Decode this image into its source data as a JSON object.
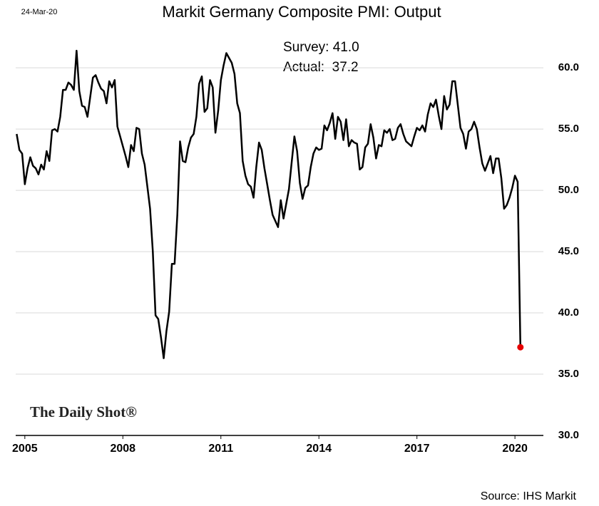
{
  "chart_data": {
    "type": "line",
    "title": "Markit Germany Composite PMI: Output",
    "date_label": "24-Mar-20",
    "annotations": [
      "Survey: 41.0",
      "Actual:  37.2"
    ],
    "logo": "The Daily Shot®",
    "source": "Source: IHS Markit",
    "x": [
      2004.75,
      2004.833,
      2004.917,
      2005,
      2005.083,
      2005.167,
      2005.25,
      2005.333,
      2005.417,
      2005.5,
      2005.583,
      2005.667,
      2005.75,
      2005.833,
      2005.917,
      2006,
      2006.083,
      2006.167,
      2006.25,
      2006.333,
      2006.417,
      2006.5,
      2006.583,
      2006.667,
      2006.75,
      2006.833,
      2006.917,
      2007,
      2007.083,
      2007.167,
      2007.25,
      2007.333,
      2007.417,
      2007.5,
      2007.583,
      2007.667,
      2007.75,
      2007.833,
      2007.917,
      2008,
      2008.083,
      2008.167,
      2008.25,
      2008.333,
      2008.417,
      2008.5,
      2008.583,
      2008.667,
      2008.75,
      2008.833,
      2008.917,
      2009,
      2009.083,
      2009.167,
      2009.25,
      2009.333,
      2009.417,
      2009.5,
      2009.583,
      2009.667,
      2009.75,
      2009.833,
      2009.917,
      2010,
      2010.083,
      2010.167,
      2010.25,
      2010.333,
      2010.417,
      2010.5,
      2010.583,
      2010.667,
      2010.75,
      2010.833,
      2010.917,
      2011,
      2011.083,
      2011.167,
      2011.25,
      2011.333,
      2011.417,
      2011.5,
      2011.583,
      2011.667,
      2011.75,
      2011.833,
      2011.917,
      2012,
      2012.083,
      2012.167,
      2012.25,
      2012.333,
      2012.417,
      2012.5,
      2012.583,
      2012.667,
      2012.75,
      2012.833,
      2012.917,
      2013,
      2013.083,
      2013.167,
      2013.25,
      2013.333,
      2013.417,
      2013.5,
      2013.583,
      2013.667,
      2013.75,
      2013.833,
      2013.917,
      2014,
      2014.083,
      2014.167,
      2014.25,
      2014.333,
      2014.417,
      2014.5,
      2014.583,
      2014.667,
      2014.75,
      2014.833,
      2014.917,
      2015,
      2015.083,
      2015.167,
      2015.25,
      2015.333,
      2015.417,
      2015.5,
      2015.583,
      2015.667,
      2015.75,
      2015.833,
      2015.917,
      2016,
      2016.083,
      2016.167,
      2016.25,
      2016.333,
      2016.417,
      2016.5,
      2016.583,
      2016.667,
      2016.75,
      2016.833,
      2016.917,
      2017,
      2017.083,
      2017.167,
      2017.25,
      2017.333,
      2017.417,
      2017.5,
      2017.583,
      2017.667,
      2017.75,
      2017.833,
      2017.917,
      2018,
      2018.083,
      2018.167,
      2018.25,
      2018.333,
      2018.417,
      2018.5,
      2018.583,
      2018.667,
      2018.75,
      2018.833,
      2018.917,
      2019,
      2019.083,
      2019.167,
      2019.25,
      2019.333,
      2019.417,
      2019.5,
      2019.583,
      2019.667,
      2019.75,
      2019.833,
      2019.917,
      2020,
      2020.083,
      2020.167
    ],
    "series": [
      {
        "color": "#000000",
        "highlight_color": "#e60000",
        "values": [
          54.6,
          53.3,
          53.0,
          50.5,
          51.8,
          52.7,
          52.0,
          51.8,
          51.3,
          52.1,
          51.7,
          53.2,
          52.4,
          54.9,
          55.0,
          54.8,
          56.0,
          58.2,
          58.2,
          58.8,
          58.6,
          58.2,
          61.4,
          58.1,
          56.9,
          56.8,
          56.0,
          57.6,
          59.2,
          59.4,
          58.8,
          58.3,
          58.1,
          57.1,
          58.9,
          58.4,
          59.0,
          55.2,
          54.4,
          53.6,
          52.8,
          51.9,
          53.7,
          53.2,
          55.1,
          55.0,
          53.0,
          52.1,
          50.3,
          48.5,
          45.0,
          39.8,
          39.5,
          38.0,
          36.3,
          38.5,
          40.1,
          44.0,
          44.0,
          48.0,
          54.0,
          52.4,
          52.3,
          53.5,
          54.3,
          54.6,
          56.0,
          58.7,
          59.3,
          56.4,
          56.7,
          59.0,
          58.4,
          54.7,
          56.5,
          59.0,
          60.2,
          61.2,
          60.8,
          60.4,
          59.5,
          57.1,
          56.3,
          52.4,
          51.2,
          50.5,
          50.3,
          49.4,
          51.9,
          53.9,
          53.3,
          51.8,
          50.5,
          49.2,
          48.0,
          47.5,
          47.0,
          49.2,
          47.7,
          48.9,
          50.1,
          52.3,
          54.4,
          53.2,
          50.6,
          49.3,
          50.2,
          50.4,
          51.9,
          53.0,
          53.5,
          53.3,
          53.4,
          55.3,
          54.9,
          55.5,
          56.3,
          54.2,
          56.0,
          55.6,
          54.1,
          55.8,
          53.6,
          54.1,
          53.9,
          53.8,
          51.7,
          51.9,
          53.5,
          53.8,
          55.4,
          54.3,
          52.6,
          53.7,
          53.6,
          54.9,
          54.7,
          55.0,
          54.1,
          54.2,
          55.1,
          55.4,
          54.6,
          54.0,
          53.8,
          53.6,
          54.4,
          55.1,
          54.9,
          55.3,
          54.8,
          56.2,
          57.1,
          56.8,
          57.4,
          56.1,
          55.0,
          57.7,
          56.6,
          57.0,
          58.9,
          58.9,
          57.0,
          55.1,
          54.6,
          53.4,
          54.8,
          55.0,
          55.6,
          55.0,
          53.5,
          52.2,
          51.6,
          52.2,
          52.8,
          51.4,
          52.6,
          52.6,
          51.0,
          48.5,
          48.8,
          49.4,
          50.2,
          51.2,
          50.7,
          37.2
        ]
      }
    ],
    "xlim": [
      2004.72,
      2020.87
    ],
    "xticks": [
      2005,
      2008,
      2011,
      2014,
      2017,
      2020
    ],
    "ylim": [
      30,
      62.8
    ],
    "yticks": [
      {
        "value": 30,
        "label": "30.0"
      },
      {
        "value": 35,
        "label": "35.0"
      },
      {
        "value": 40,
        "label": "40.0"
      },
      {
        "value": 45,
        "label": "45.0"
      },
      {
        "value": 50,
        "label": "50.0"
      },
      {
        "value": 55,
        "label": "55.0"
      },
      {
        "value": 60,
        "label": "60.0"
      }
    ],
    "grid": true
  }
}
